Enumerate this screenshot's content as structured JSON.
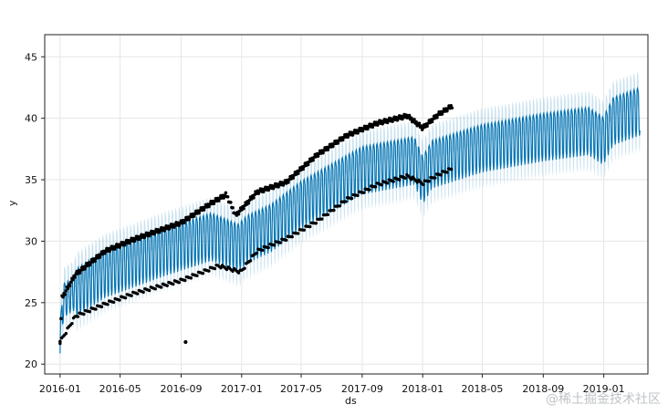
{
  "chart_data": {
    "type": "line",
    "xlabel": "ds",
    "ylabel": "y",
    "x_ticks": [
      "2016-01",
      "2016-05",
      "2016-09",
      "2017-01",
      "2017-05",
      "2017-09",
      "2018-01",
      "2018-05",
      "2018-09",
      "2019-01"
    ],
    "y_ticks": [
      20,
      25,
      30,
      35,
      40,
      45
    ],
    "ylim": [
      19.2,
      46.8
    ],
    "x_range": [
      "2015-12-01",
      "2019-03-31"
    ],
    "history_end": "2018-03-01",
    "grid": true,
    "colors": {
      "forecast": "#0072B2",
      "interval": "#9ecae1",
      "observed": "#000000"
    },
    "trend": [
      {
        "x": "2016-01-01",
        "y": 22.0
      },
      {
        "x": "2016-01-08",
        "y": 25.2
      },
      {
        "x": "2016-04-01",
        "y": 27.4
      },
      {
        "x": "2016-08-01",
        "y": 29.2
      },
      {
        "x": "2016-11-01",
        "y": 30.4
      },
      {
        "x": "2016-12-25",
        "y": 29.5
      },
      {
        "x": "2017-01-12",
        "y": 30.2
      },
      {
        "x": "2017-03-01",
        "y": 31.1
      },
      {
        "x": "2017-05-01",
        "y": 33.0
      },
      {
        "x": "2017-09-01",
        "y": 35.8
      },
      {
        "x": "2017-12-15",
        "y": 36.6
      },
      {
        "x": "2018-01-01",
        "y": 35.0
      },
      {
        "x": "2018-01-20",
        "y": 36.3
      },
      {
        "x": "2018-05-01",
        "y": 37.6
      },
      {
        "x": "2018-09-01",
        "y": 38.5
      },
      {
        "x": "2018-12-01",
        "y": 39.0
      },
      {
        "x": "2018-12-31",
        "y": 38.2
      },
      {
        "x": "2019-01-20",
        "y": 39.8
      },
      {
        "x": "2019-03-15",
        "y": 40.6
      }
    ],
    "observed_upper": [
      {
        "x": "2016-01-01",
        "y": 22.0
      },
      {
        "x": "2016-01-05",
        "y": 25.4
      },
      {
        "x": "2016-02-01",
        "y": 27.3
      },
      {
        "x": "2016-04-01",
        "y": 29.2
      },
      {
        "x": "2016-06-01",
        "y": 30.2
      },
      {
        "x": "2016-09-01",
        "y": 31.5
      },
      {
        "x": "2016-11-01",
        "y": 33.1
      },
      {
        "x": "2016-12-01",
        "y": 33.8
      },
      {
        "x": "2016-12-20",
        "y": 32.1
      },
      {
        "x": "2017-02-01",
        "y": 34.0
      },
      {
        "x": "2017-04-01",
        "y": 34.8
      },
      {
        "x": "2017-06-01",
        "y": 37.0
      },
      {
        "x": "2017-08-01",
        "y": 38.6
      },
      {
        "x": "2017-10-01",
        "y": 39.6
      },
      {
        "x": "2017-12-01",
        "y": 40.2
      },
      {
        "x": "2018-01-01",
        "y": 39.2
      },
      {
        "x": "2018-02-01",
        "y": 40.3
      },
      {
        "x": "2018-03-01",
        "y": 41.0
      }
    ],
    "observed_lower": [
      {
        "x": "2016-01-01",
        "y": 21.8
      },
      {
        "x": "2016-02-01",
        "y": 23.9
      },
      {
        "x": "2016-04-01",
        "y": 24.9
      },
      {
        "x": "2016-06-01",
        "y": 25.8
      },
      {
        "x": "2016-09-01",
        "y": 26.8
      },
      {
        "x": "2016-11-15",
        "y": 28.0
      },
      {
        "x": "2016-12-30",
        "y": 27.5
      },
      {
        "x": "2017-02-01",
        "y": 29.2
      },
      {
        "x": "2017-04-01",
        "y": 30.2
      },
      {
        "x": "2017-06-01",
        "y": 31.6
      },
      {
        "x": "2017-08-01",
        "y": 33.4
      },
      {
        "x": "2017-10-01",
        "y": 34.6
      },
      {
        "x": "2017-12-01",
        "y": 35.3
      },
      {
        "x": "2018-01-01",
        "y": 34.7
      },
      {
        "x": "2018-02-01",
        "y": 35.4
      },
      {
        "x": "2018-03-01",
        "y": 35.9
      }
    ],
    "outliers": [
      {
        "x": "2016-09-10",
        "y": 21.8
      }
    ]
  },
  "watermark": "@稀土掘金技术社区"
}
